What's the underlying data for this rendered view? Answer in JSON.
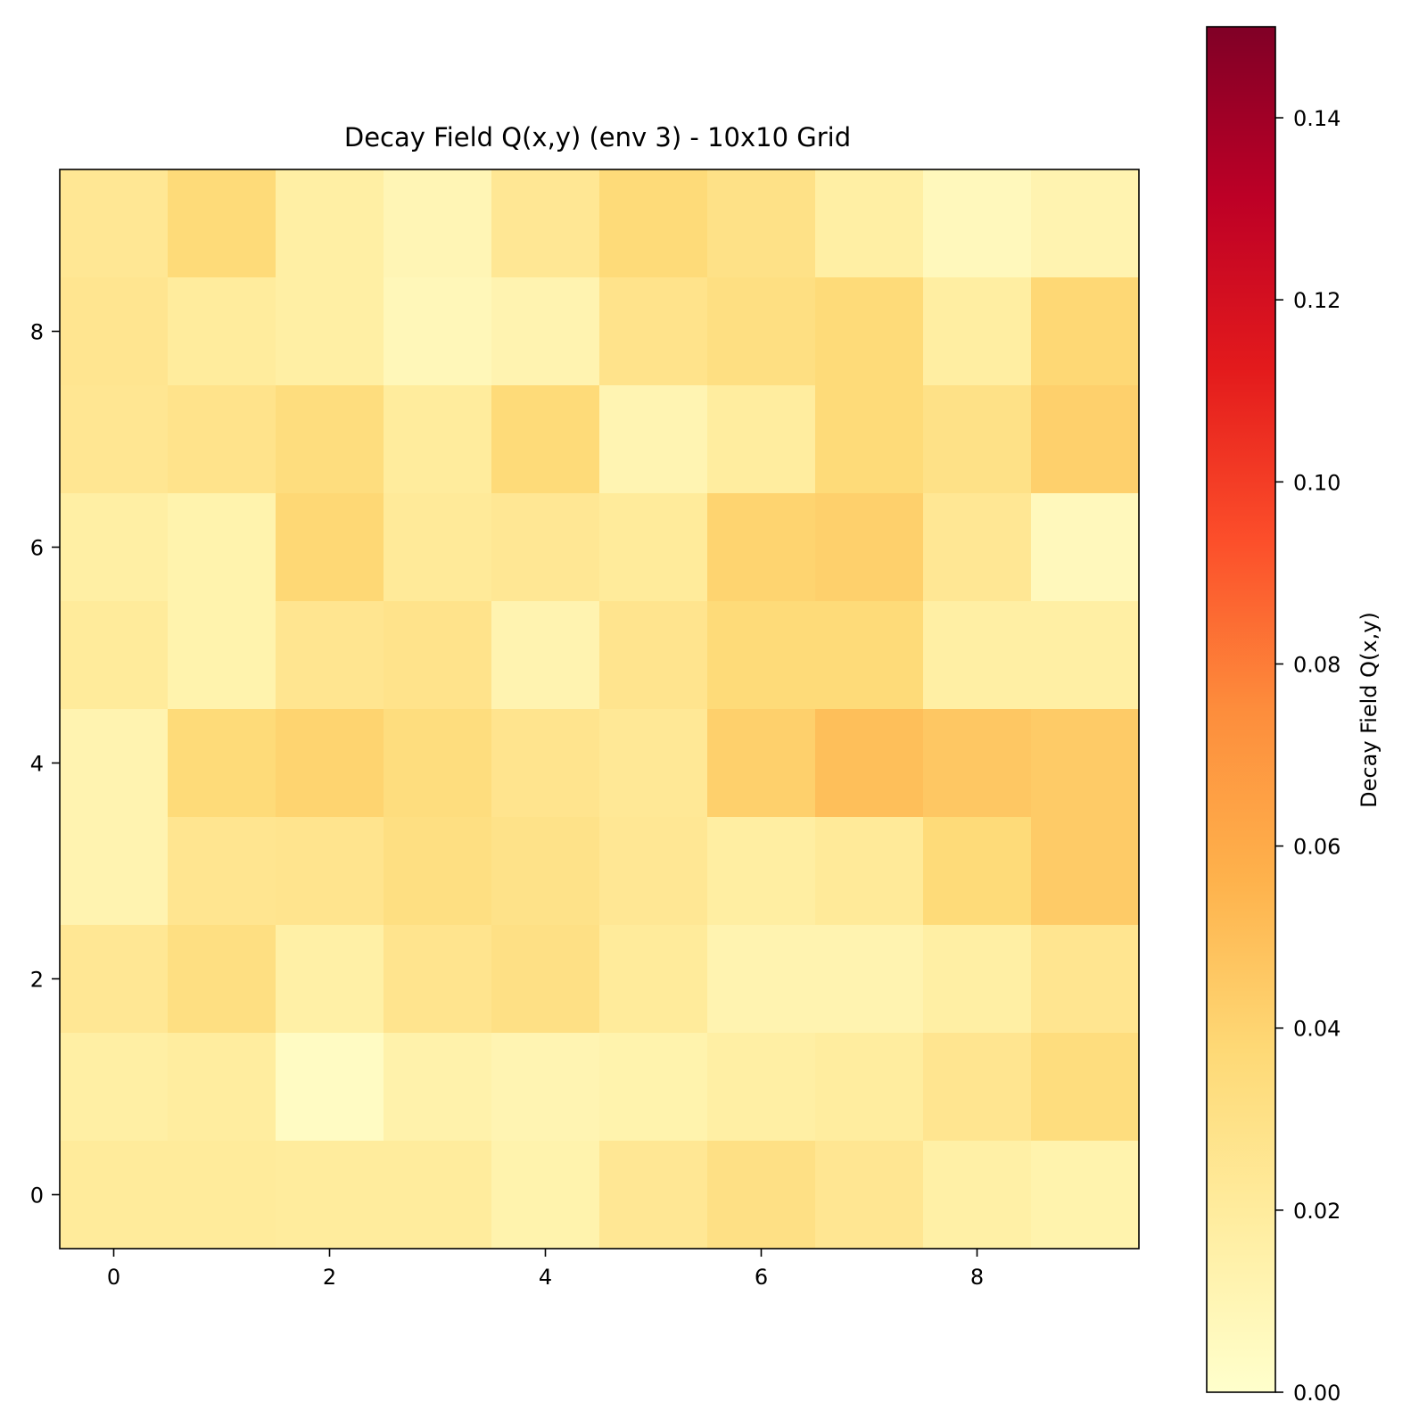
{
  "chart_data": {
    "type": "heatmap",
    "title": "Decay Field Q(x,y) (env 3) - 10x10 Grid",
    "xlabel": "",
    "ylabel": "",
    "x_ticks": [
      0,
      2,
      4,
      6,
      8
    ],
    "y_ticks": [
      0,
      2,
      4,
      6,
      8
    ],
    "xlim": [
      -0.5,
      9.5
    ],
    "ylim": [
      -0.5,
      9.5
    ],
    "grid": false,
    "colormap": "YlOrRd",
    "colormap_stops": [
      "#ffffcc",
      "#ffeda0",
      "#fed976",
      "#feb24c",
      "#fd8d3c",
      "#fc4e2a",
      "#e31a1c",
      "#bd0026",
      "#800026"
    ],
    "colorbar": {
      "label": "Decay Field Q(x,y)",
      "vmin": 0.0,
      "vmax": 0.15,
      "ticks": [
        "0.00",
        "0.02",
        "0.04",
        "0.06",
        "0.08",
        "0.10",
        "0.12",
        "0.14"
      ],
      "placement": "right"
    },
    "rows_top_to_bottom_y": [
      9,
      8,
      7,
      6,
      5,
      4,
      3,
      2,
      1,
      0
    ],
    "values": [
      [
        0.024,
        0.036,
        0.017,
        0.01,
        0.024,
        0.036,
        0.03,
        0.017,
        0.007,
        0.012
      ],
      [
        0.026,
        0.02,
        0.017,
        0.008,
        0.012,
        0.028,
        0.032,
        0.036,
        0.018,
        0.038
      ],
      [
        0.025,
        0.028,
        0.034,
        0.02,
        0.036,
        0.011,
        0.019,
        0.036,
        0.03,
        0.042
      ],
      [
        0.017,
        0.013,
        0.038,
        0.022,
        0.024,
        0.021,
        0.04,
        0.042,
        0.024,
        0.007
      ],
      [
        0.021,
        0.013,
        0.026,
        0.028,
        0.012,
        0.027,
        0.036,
        0.036,
        0.017,
        0.017
      ],
      [
        0.012,
        0.036,
        0.04,
        0.034,
        0.027,
        0.023,
        0.042,
        0.05,
        0.046,
        0.044
      ],
      [
        0.012,
        0.026,
        0.027,
        0.032,
        0.029,
        0.024,
        0.018,
        0.022,
        0.036,
        0.044
      ],
      [
        0.024,
        0.032,
        0.016,
        0.027,
        0.031,
        0.021,
        0.012,
        0.012,
        0.017,
        0.026
      ],
      [
        0.017,
        0.019,
        0.004,
        0.014,
        0.011,
        0.013,
        0.017,
        0.019,
        0.026,
        0.034
      ],
      [
        0.021,
        0.021,
        0.02,
        0.02,
        0.013,
        0.024,
        0.031,
        0.025,
        0.016,
        0.013
      ]
    ]
  }
}
